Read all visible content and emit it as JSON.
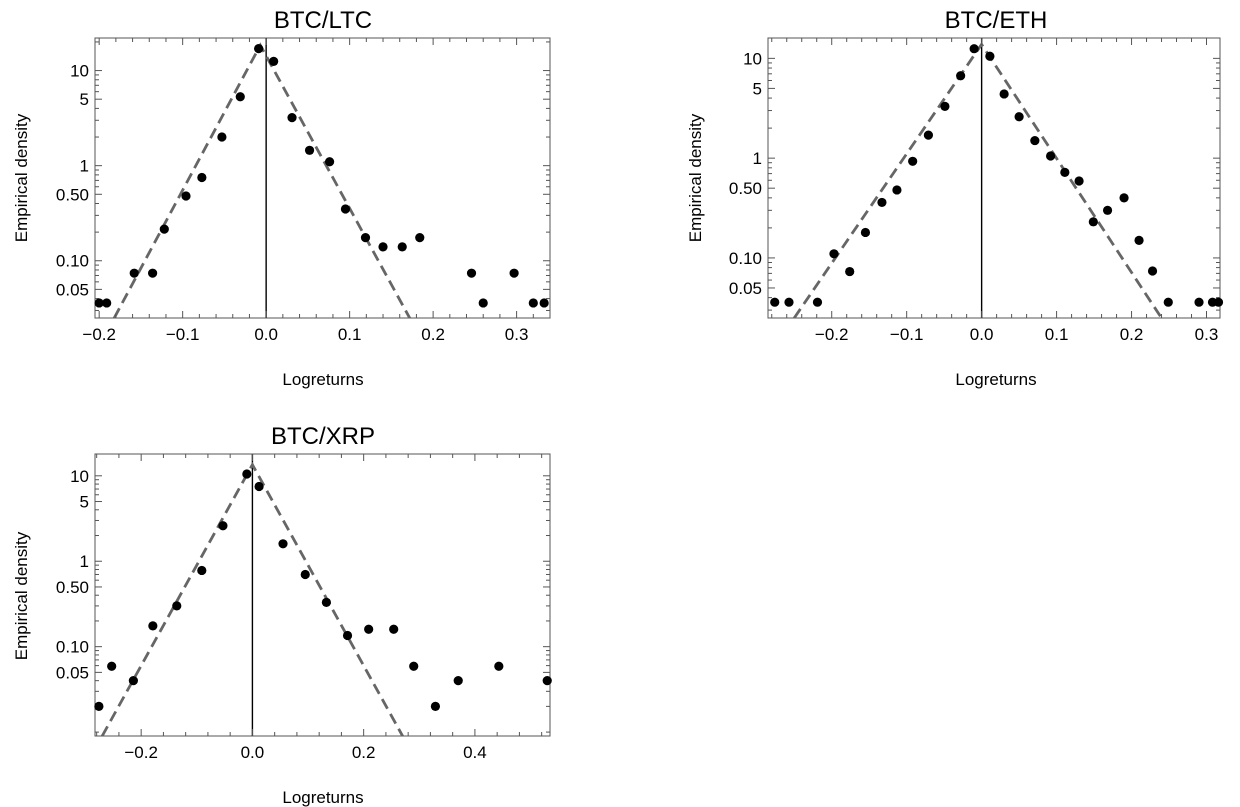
{
  "chart_data": [
    {
      "type": "scatter",
      "title": "BTC/LTC",
      "xlabel": "Logreturns",
      "ylabel": "Empirical density",
      "xlim": [
        -0.205,
        0.34
      ],
      "ylim": [
        0.025,
        22
      ],
      "yscale": "log",
      "xticks": [
        -0.2,
        -0.1,
        0.0,
        0.1,
        0.2,
        0.3
      ],
      "xtick_labels": [
        "−0.2",
        "−0.1",
        "0.0",
        "0.1",
        "0.2",
        "0.3"
      ],
      "yticks": [
        0.05,
        0.1,
        0.5,
        1,
        5,
        10
      ],
      "ytick_labels": [
        "0.05",
        "0.10",
        "0.50",
        "1",
        "5",
        "10"
      ],
      "grid": false,
      "vline_x": 0,
      "points": [
        {
          "x": -0.2,
          "y": 0.036
        },
        {
          "x": -0.191,
          "y": 0.036
        },
        {
          "x": -0.158,
          "y": 0.074
        },
        {
          "x": -0.136,
          "y": 0.074
        },
        {
          "x": -0.122,
          "y": 0.215
        },
        {
          "x": -0.096,
          "y": 0.48
        },
        {
          "x": -0.077,
          "y": 0.75
        },
        {
          "x": -0.053,
          "y": 2.0
        },
        {
          "x": -0.031,
          "y": 5.3
        },
        {
          "x": -0.009,
          "y": 17
        },
        {
          "x": 0.009,
          "y": 12.5
        },
        {
          "x": 0.031,
          "y": 3.2
        },
        {
          "x": 0.052,
          "y": 1.45
        },
        {
          "x": 0.076,
          "y": 1.1
        },
        {
          "x": 0.095,
          "y": 0.35
        },
        {
          "x": 0.119,
          "y": 0.175
        },
        {
          "x": 0.14,
          "y": 0.14
        },
        {
          "x": 0.163,
          "y": 0.14
        },
        {
          "x": 0.184,
          "y": 0.175
        },
        {
          "x": 0.246,
          "y": 0.074
        },
        {
          "x": 0.26,
          "y": 0.036
        },
        {
          "x": 0.297,
          "y": 0.074
        },
        {
          "x": 0.32,
          "y": 0.036
        },
        {
          "x": 0.333,
          "y": 0.036
        }
      ],
      "fit_line": [
        [
          -0.182,
          0.025
        ],
        [
          -0.007,
          18.5
        ],
        [
          0.172,
          0.025
        ]
      ]
    },
    {
      "type": "scatter",
      "title": "BTC/ETH",
      "xlabel": "Logreturns",
      "ylabel": "Empirical density",
      "xlim": [
        -0.285,
        0.318
      ],
      "ylim": [
        0.025,
        16
      ],
      "yscale": "log",
      "xticks": [
        -0.2,
        -0.1,
        0.0,
        0.1,
        0.2,
        0.3
      ],
      "xtick_labels": [
        "−0.2",
        "−0.1",
        "0.0",
        "0.1",
        "0.2",
        "0.3"
      ],
      "yticks": [
        0.05,
        0.1,
        0.5,
        1,
        5,
        10
      ],
      "ytick_labels": [
        "0.05",
        "0.10",
        "0.50",
        "1",
        "5",
        "10"
      ],
      "grid": false,
      "vline_x": 0,
      "points": [
        {
          "x": -0.276,
          "y": 0.036
        },
        {
          "x": -0.257,
          "y": 0.036
        },
        {
          "x": -0.219,
          "y": 0.036
        },
        {
          "x": -0.197,
          "y": 0.11
        },
        {
          "x": -0.176,
          "y": 0.073
        },
        {
          "x": -0.155,
          "y": 0.18
        },
        {
          "x": -0.133,
          "y": 0.36
        },
        {
          "x": -0.113,
          "y": 0.48
        },
        {
          "x": -0.092,
          "y": 0.93
        },
        {
          "x": -0.071,
          "y": 1.7
        },
        {
          "x": -0.049,
          "y": 3.3
        },
        {
          "x": -0.028,
          "y": 6.7
        },
        {
          "x": -0.01,
          "y": 12.5
        },
        {
          "x": 0.011,
          "y": 10.5
        },
        {
          "x": 0.03,
          "y": 4.4
        },
        {
          "x": 0.05,
          "y": 2.6
        },
        {
          "x": 0.071,
          "y": 1.5
        },
        {
          "x": 0.092,
          "y": 1.05
        },
        {
          "x": 0.111,
          "y": 0.72
        },
        {
          "x": 0.13,
          "y": 0.59
        },
        {
          "x": 0.149,
          "y": 0.23
        },
        {
          "x": 0.168,
          "y": 0.3
        },
        {
          "x": 0.19,
          "y": 0.4
        },
        {
          "x": 0.21,
          "y": 0.15
        },
        {
          "x": 0.228,
          "y": 0.074
        },
        {
          "x": 0.249,
          "y": 0.036
        },
        {
          "x": 0.29,
          "y": 0.036
        },
        {
          "x": 0.308,
          "y": 0.036
        },
        {
          "x": 0.316,
          "y": 0.036
        }
      ],
      "fit_line": [
        [
          -0.25,
          0.025
        ],
        [
          0.0,
          13.8
        ],
        [
          0.24,
          0.025
        ]
      ]
    },
    {
      "type": "scatter",
      "title": "BTC/XRP",
      "xlabel": "Logreturns",
      "ylabel": "Empirical density",
      "xlim": [
        -0.283,
        0.535
      ],
      "ylim": [
        0.009,
        18
      ],
      "yscale": "log",
      "xticks": [
        -0.2,
        0.0,
        0.2,
        0.4
      ],
      "xtick_labels": [
        "−0.2",
        "0.0",
        "0.2",
        "0.4"
      ],
      "yticks": [
        0.05,
        0.1,
        0.5,
        1,
        5,
        10
      ],
      "ytick_labels": [
        "0.05",
        "0.10",
        "0.50",
        "1",
        "5",
        "10"
      ],
      "grid": false,
      "vline_x": 0,
      "points": [
        {
          "x": -0.276,
          "y": 0.02
        },
        {
          "x": -0.253,
          "y": 0.059
        },
        {
          "x": -0.214,
          "y": 0.04
        },
        {
          "x": -0.179,
          "y": 0.175
        },
        {
          "x": -0.136,
          "y": 0.3
        },
        {
          "x": -0.091,
          "y": 0.78
        },
        {
          "x": -0.053,
          "y": 2.6
        },
        {
          "x": -0.01,
          "y": 10.5
        },
        {
          "x": 0.012,
          "y": 7.5
        },
        {
          "x": 0.055,
          "y": 1.6
        },
        {
          "x": 0.095,
          "y": 0.7
        },
        {
          "x": 0.133,
          "y": 0.33
        },
        {
          "x": 0.171,
          "y": 0.135
        },
        {
          "x": 0.209,
          "y": 0.16
        },
        {
          "x": 0.254,
          "y": 0.16
        },
        {
          "x": 0.29,
          "y": 0.059
        },
        {
          "x": 0.329,
          "y": 0.02
        },
        {
          "x": 0.37,
          "y": 0.04
        },
        {
          "x": 0.443,
          "y": 0.059
        },
        {
          "x": 0.53,
          "y": 0.04
        }
      ],
      "fit_line": [
        [
          -0.27,
          0.009
        ],
        [
          0.0,
          13.5
        ],
        [
          0.27,
          0.009
        ]
      ]
    }
  ]
}
